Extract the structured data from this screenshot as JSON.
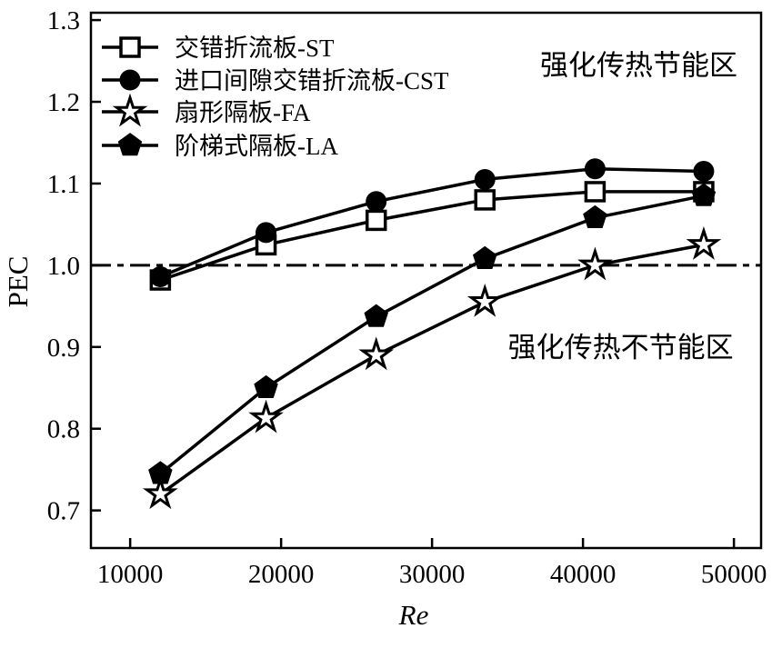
{
  "figure": {
    "background": "#ffffff",
    "ink_color": "#000000"
  },
  "chart_data": {
    "type": "line",
    "title": "",
    "xlabel": "Re",
    "ylabel": "PEC",
    "xlim": [
      7400,
      51800
    ],
    "ylim": [
      0.654,
      1.309
    ],
    "x_ticks": [
      10000,
      20000,
      30000,
      40000,
      50000
    ],
    "y_ticks": [
      0.7,
      0.8,
      0.9,
      1.0,
      1.1,
      1.2,
      1.3
    ],
    "grid": false,
    "legend_position": "top-left-inside",
    "reference_line": {
      "y": 1.0,
      "style": "dash-dot"
    },
    "x": [
      12000,
      19000,
      26300,
      33500,
      40800,
      48000
    ],
    "series": [
      {
        "name": "交错折流板-ST",
        "marker": "open-square",
        "values": [
          0.982,
          1.025,
          1.055,
          1.08,
          1.09,
          1.09
        ]
      },
      {
        "name": "进口间隙交错折流板-CST",
        "marker": "filled-circle",
        "values": [
          0.986,
          1.04,
          1.078,
          1.105,
          1.118,
          1.115
        ]
      },
      {
        "name": "扇形隔板-FA",
        "marker": "open-star",
        "values": [
          0.72,
          0.813,
          0.89,
          0.955,
          1.0,
          1.025
        ]
      },
      {
        "name": "阶梯式隔板-LA",
        "marker": "filled-pentagon",
        "values": [
          0.745,
          0.85,
          0.937,
          1.008,
          1.058,
          1.085
        ]
      }
    ],
    "annotations": [
      {
        "text": "强化传热节能区",
        "re": 43700,
        "pec": 1.245
      },
      {
        "text": "强化传热不节能区",
        "re": 42500,
        "pec": 0.9
      }
    ]
  }
}
